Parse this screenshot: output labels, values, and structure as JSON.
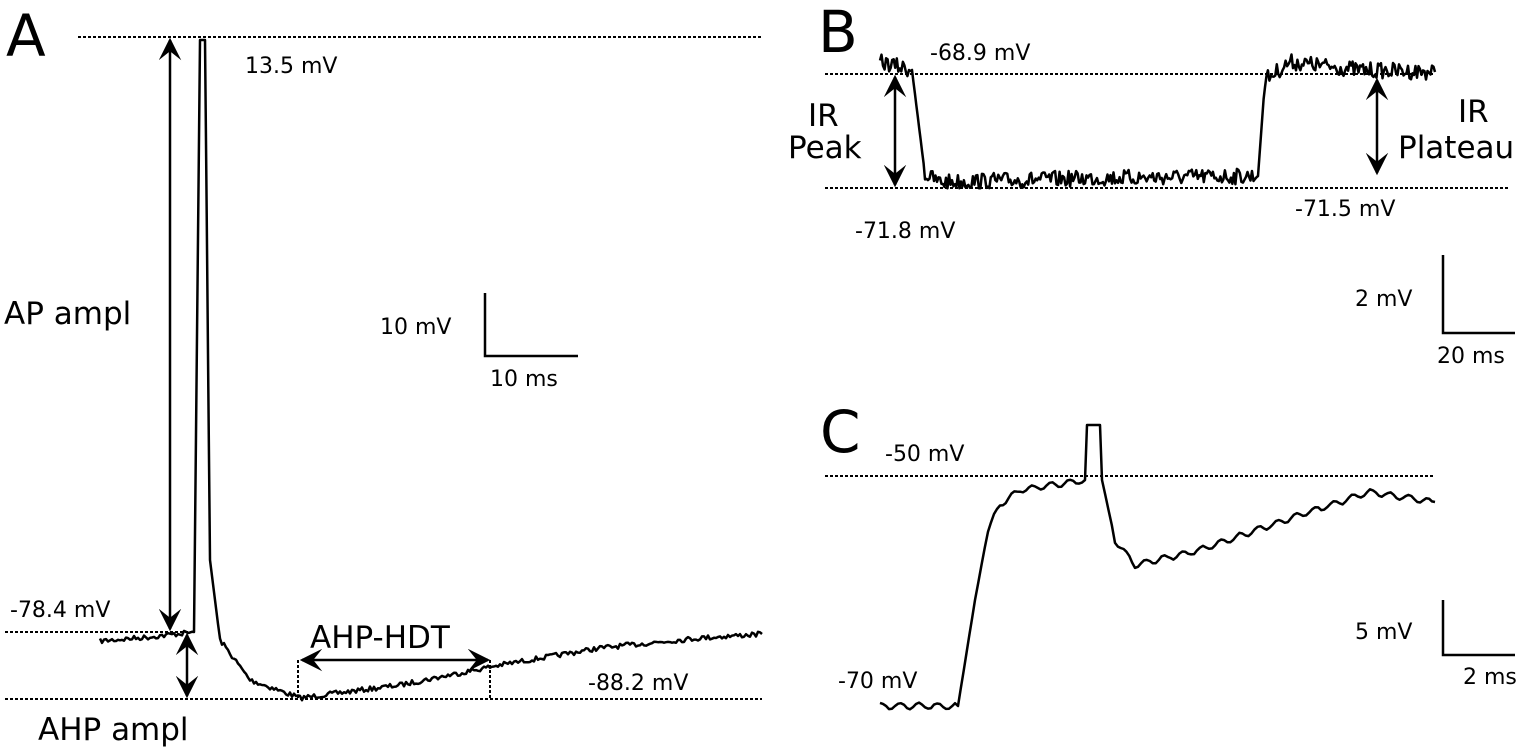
{
  "panels": [
    {
      "letter": "A",
      "texts": [
        "13.5 mV",
        "-78.4 mV",
        "-88.2 mV",
        "AP ampl",
        "AHP ampl",
        "AHP-HDT",
        "10 mV",
        "10 ms"
      ]
    },
    {
      "letter": "B",
      "texts": [
        "-68.9 mV",
        "-71.8 mV",
        "-71.5 mV",
        "IR",
        "Peak",
        "IR",
        "Plateau",
        "2 mV",
        "20 ms"
      ]
    },
    {
      "letter": "C",
      "texts": [
        "-50 mV",
        "-70 mV",
        "5 mV",
        "2 ms"
      ]
    }
  ]
}
